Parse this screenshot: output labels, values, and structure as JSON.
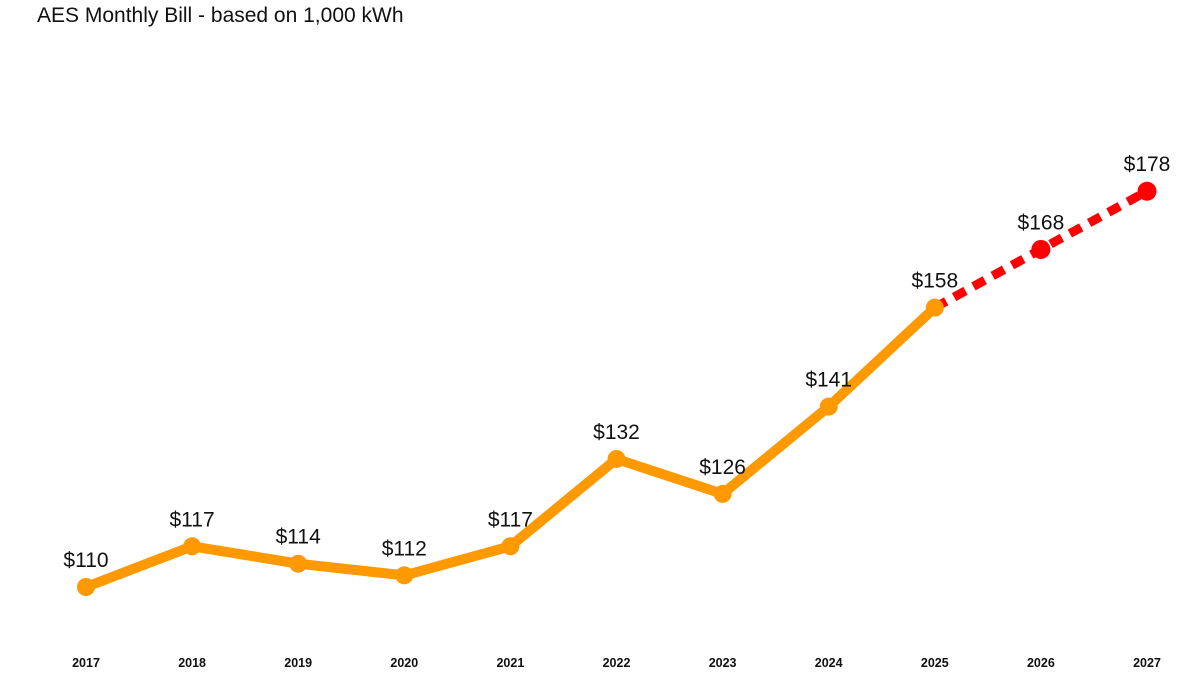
{
  "chart_data": {
    "type": "line",
    "title": "AES Monthly Bill - based on 1,000 kWh",
    "xlabel": "",
    "ylabel": "",
    "categories": [
      "2017",
      "2018",
      "2019",
      "2020",
      "2021",
      "2022",
      "2023",
      "2024",
      "2025",
      "2026",
      "2027"
    ],
    "series": [
      {
        "values": [
          110,
          117,
          114,
          112,
          117,
          132,
          126,
          141,
          158,
          null,
          null
        ],
        "labels": [
          "$110",
          "$117",
          "$114",
          "$112",
          "$117",
          "$132",
          "$126",
          "$141",
          "$158",
          null,
          null
        ],
        "color": "#ff9900",
        "style": "solid"
      },
      {
        "values": [
          null,
          null,
          null,
          null,
          null,
          null,
          null,
          null,
          158,
          168,
          178
        ],
        "labels": [
          null,
          null,
          null,
          null,
          null,
          null,
          null,
          null,
          null,
          "$168",
          "$178"
        ],
        "color": "#ff0000",
        "style": "dashed"
      }
    ],
    "grid": false,
    "legend": "none"
  }
}
